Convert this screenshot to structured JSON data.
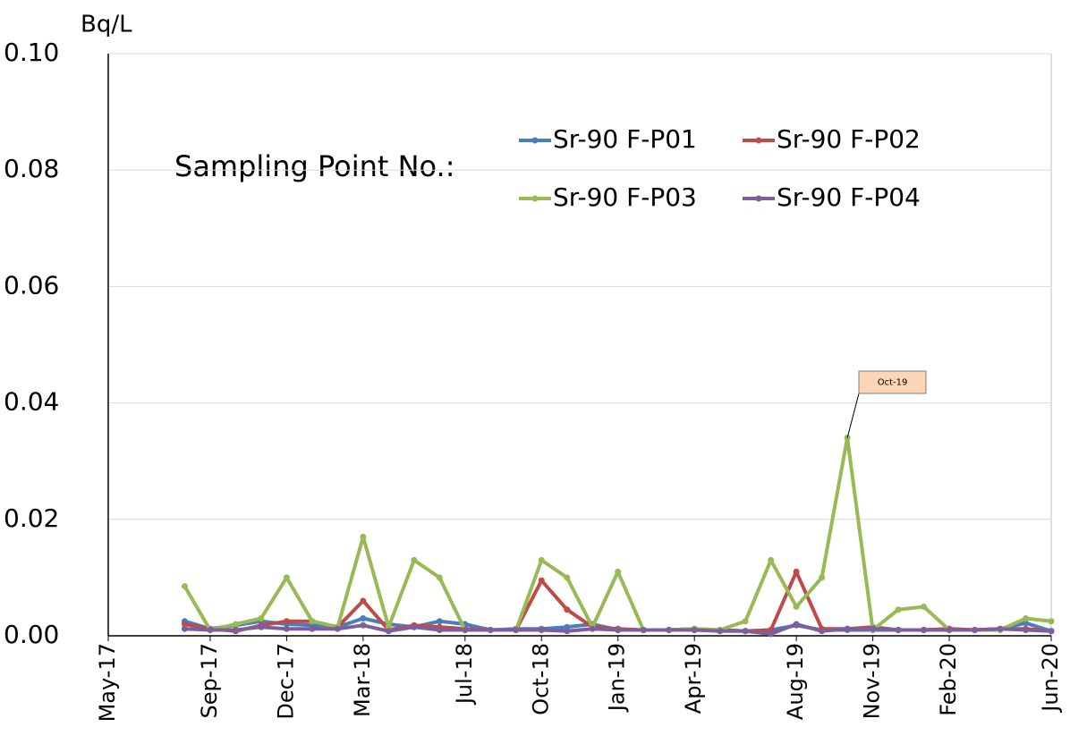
{
  "chart_data": {
    "type": "line",
    "y_label": "Bq/L",
    "legend_title": "Sampling Point No.:",
    "x": [
      "2017-08",
      "2017-09",
      "2017-10",
      "2017-11",
      "2017-12",
      "2018-01",
      "2018-02",
      "2018-03",
      "2018-04",
      "2018-05",
      "2018-06",
      "2018-07",
      "2018-08",
      "2018-09",
      "2018-10",
      "2018-11",
      "2018-12",
      "2019-01",
      "2019-02",
      "2019-03",
      "2019-04",
      "2019-05",
      "2019-06",
      "2019-07",
      "2019-08",
      "2019-09",
      "2019-10",
      "2019-11",
      "2019-12",
      "2020-01",
      "2020-02",
      "2020-03",
      "2020-04",
      "2020-05",
      "2020-06"
    ],
    "series": [
      {
        "name": "Sr-90 F-P01",
        "color": "#4a7ebb",
        "values": [
          0.0025,
          0.0012,
          0.0018,
          0.0025,
          0.002,
          0.0018,
          0.0015,
          0.003,
          0.002,
          0.0015,
          0.0025,
          0.002,
          0.001,
          0.0012,
          0.0012,
          0.0015,
          0.002,
          0.001,
          0.001,
          0.001,
          0.0012,
          0.001,
          0.0008,
          0.001,
          0.0018,
          0.001,
          0.001,
          0.001,
          0.001,
          0.001,
          0.0012,
          0.001,
          0.0012,
          0.0022,
          0.0008
        ]
      },
      {
        "name": "Sr-90 F-P02",
        "color": "#be4b48",
        "values": [
          0.002,
          0.0012,
          0.0008,
          0.0018,
          0.0025,
          0.0025,
          0.0015,
          0.006,
          0.001,
          0.0018,
          0.0015,
          0.0012,
          0.001,
          0.001,
          0.0095,
          0.0045,
          0.0015,
          0.0012,
          0.001,
          0.001,
          0.001,
          0.001,
          0.0008,
          0.001,
          0.011,
          0.0012,
          0.0012,
          0.0015,
          0.001,
          0.001,
          0.0012,
          0.001,
          0.0012,
          0.0012,
          0.0008
        ]
      },
      {
        "name": "Sr-90 F-P03",
        "color": "#98b954",
        "values": [
          0.0085,
          0.001,
          0.002,
          0.003,
          0.01,
          0.0025,
          0.0015,
          0.017,
          0.0015,
          0.013,
          0.01,
          0.001,
          0.001,
          0.001,
          0.013,
          0.01,
          0.0015,
          0.011,
          0.001,
          0.001,
          0.0012,
          0.001,
          0.0025,
          0.013,
          0.005,
          0.01,
          0.034,
          0.001,
          0.0045,
          0.005,
          0.001,
          0.001,
          0.001,
          0.003,
          0.0025
        ]
      },
      {
        "name": "Sr-90 F-P04",
        "color": "#7d5fa0",
        "values": [
          0.0012,
          0.001,
          0.001,
          0.0015,
          0.0012,
          0.0012,
          0.0012,
          0.0018,
          0.0008,
          0.0015,
          0.001,
          0.001,
          0.001,
          0.001,
          0.001,
          0.0008,
          0.0012,
          0.001,
          0.001,
          0.001,
          0.001,
          0.0008,
          0.0008,
          0.0003,
          0.002,
          0.0008,
          0.0012,
          0.0012,
          0.001,
          0.001,
          0.001,
          0.001,
          0.0012,
          0.001,
          0.0008
        ]
      }
    ],
    "xlim": [
      "2017-05",
      "2020-06"
    ],
    "xticks": [
      {
        "value": "2017-05",
        "label": "May-17"
      },
      {
        "value": "2017-09",
        "label": "Sep-17"
      },
      {
        "value": "2017-12",
        "label": "Dec-17"
      },
      {
        "value": "2018-03",
        "label": "Mar-18"
      },
      {
        "value": "2018-07",
        "label": "Jul-18"
      },
      {
        "value": "2018-10",
        "label": "Oct-18"
      },
      {
        "value": "2019-01",
        "label": "Jan-19"
      },
      {
        "value": "2019-04",
        "label": "Apr-19"
      },
      {
        "value": "2019-08",
        "label": "Aug-19"
      },
      {
        "value": "2019-11",
        "label": "Nov-19"
      },
      {
        "value": "2020-02",
        "label": "Feb-20"
      },
      {
        "value": "2020-06",
        "label": "Jun-20"
      }
    ],
    "ylim": [
      0,
      0.1
    ],
    "yticks": [
      {
        "value": 0,
        "label": "0.00"
      },
      {
        "value": 0.02,
        "label": "0.02"
      },
      {
        "value": 0.04,
        "label": "0.04"
      },
      {
        "value": 0.06,
        "label": "0.06"
      },
      {
        "value": 0.08,
        "label": "0.08"
      },
      {
        "value": 0.1,
        "label": "0.10"
      }
    ],
    "grid": true,
    "annotations": [
      {
        "text": "Oct-19",
        "x": "2019-10",
        "y": 0.034
      }
    ]
  }
}
